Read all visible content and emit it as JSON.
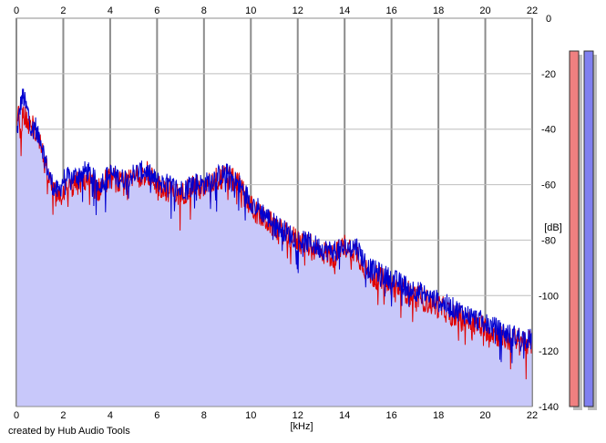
{
  "credit": "created by Hub Audio Tools",
  "colors": {
    "background": "#ffffff",
    "fill": "#c8c8fa",
    "grid_major": "#8c8c8c",
    "grid_minor": "#bebebe",
    "left_channel": "#e00000",
    "right_channel": "#0000d0",
    "left_meter": "#f08080",
    "right_meter": "#8080f0",
    "meter_shadow": "#bdbdbd"
  },
  "chart_data": {
    "type": "line",
    "xlabel": "[kHz]",
    "ylabel": "[dB]",
    "xlim": [
      0,
      22
    ],
    "ylim": [
      -140,
      0
    ],
    "xticks": [
      0,
      2,
      4,
      6,
      8,
      10,
      12,
      14,
      16,
      18,
      20,
      22
    ],
    "xtick_labels": [
      "0",
      "2",
      "4",
      "6",
      "8",
      "10",
      "12",
      "14",
      "16",
      "18",
      "20",
      "22"
    ],
    "yticks": [
      0,
      -20,
      -40,
      -60,
      -80,
      -100,
      -120,
      -140
    ],
    "ytick_labels": [
      "0",
      "-20",
      "-40",
      "-60",
      "-80",
      "-100",
      "-120",
      "-140"
    ],
    "grid": true,
    "legend": "none",
    "series": [
      {
        "color": "#e00000",
        "x": [
          0,
          0.1,
          0.2,
          0.3,
          0.4,
          0.5,
          0.6,
          0.7,
          0.8,
          0.9,
          1.0,
          1.2,
          1.4,
          1.6,
          1.8,
          2.0,
          2.5,
          3.0,
          3.5,
          4.0,
          4.5,
          5.0,
          5.5,
          6.0,
          6.5,
          7.0,
          7.5,
          8.0,
          8.5,
          9.0,
          9.5,
          10.0,
          10.5,
          11.0,
          11.5,
          12.0,
          12.5,
          13.0,
          13.5,
          14.0,
          14.5,
          15.0,
          15.5,
          16.0,
          16.5,
          17.0,
          17.5,
          18.0,
          18.5,
          19.0,
          19.5,
          20.0,
          20.5,
          21.0,
          21.5,
          22.0
        ],
        "y": [
          -40,
          -35,
          -42,
          -33,
          -36,
          -38,
          -40,
          -38,
          -42,
          -40,
          -44,
          -52,
          -58,
          -63,
          -66,
          -62,
          -60,
          -58,
          -62,
          -57,
          -60,
          -58,
          -55,
          -60,
          -62,
          -64,
          -60,
          -62,
          -58,
          -57,
          -60,
          -68,
          -72,
          -75,
          -78,
          -80,
          -82,
          -84,
          -86,
          -82,
          -84,
          -92,
          -94,
          -96,
          -98,
          -100,
          -102,
          -104,
          -106,
          -108,
          -110,
          -112,
          -114,
          -116,
          -116,
          -117
        ]
      },
      {
        "color": "#0000d0",
        "x": [
          0,
          0.1,
          0.2,
          0.3,
          0.4,
          0.5,
          0.6,
          0.7,
          0.8,
          0.9,
          1.0,
          1.2,
          1.4,
          1.6,
          1.8,
          2.0,
          2.5,
          3.0,
          3.5,
          4.0,
          4.5,
          5.0,
          5.5,
          6.0,
          6.5,
          7.0,
          7.5,
          8.0,
          8.5,
          9.0,
          9.5,
          10.0,
          10.5,
          11.0,
          11.5,
          12.0,
          12.5,
          13.0,
          13.5,
          14.0,
          14.5,
          15.0,
          15.5,
          16.0,
          16.5,
          17.0,
          17.5,
          18.0,
          18.5,
          19.0,
          19.5,
          20.0,
          20.5,
          21.0,
          21.5,
          22.0
        ],
        "y": [
          -43,
          -36,
          -30,
          -28,
          -32,
          -34,
          -38,
          -40,
          -38,
          -43,
          -42,
          -50,
          -57,
          -61,
          -63,
          -58,
          -57,
          -55,
          -60,
          -56,
          -58,
          -56,
          -55,
          -59,
          -60,
          -62,
          -59,
          -60,
          -57,
          -56,
          -60,
          -66,
          -70,
          -74,
          -77,
          -80,
          -81,
          -83,
          -84,
          -83,
          -82,
          -90,
          -92,
          -94,
          -96,
          -98,
          -100,
          -102,
          -104,
          -106,
          -108,
          -110,
          -112,
          -114,
          -115,
          -116
        ]
      }
    ],
    "meters": [
      {
        "color": "#f08080",
        "value_db": 0
      },
      {
        "color": "#8080f0",
        "value_db": 0
      }
    ]
  }
}
